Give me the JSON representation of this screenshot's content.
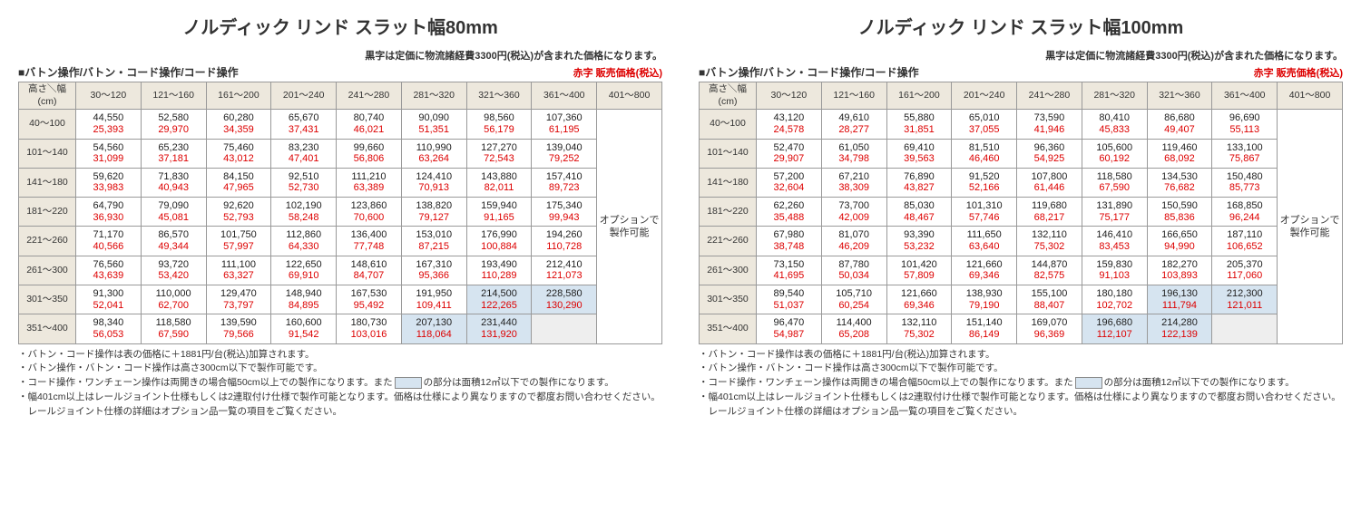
{
  "panels": [
    {
      "title": "ノルディック リンド スラット幅80mm",
      "top_note": "黒字は定価に物流諸経費3300円(税込)が含まれた価格になります。",
      "op_label": "■バトン操作/バトン・コード操作/コード操作",
      "red_label": "赤字 販売価格(税込)",
      "col_header_first": "高さ＼幅(cm)",
      "columns": [
        "30～120",
        "121～160",
        "161～200",
        "201～240",
        "241～280",
        "281～320",
        "321～360",
        "361～400",
        "401～800"
      ],
      "option_text": "オプションで製作可能",
      "rows": [
        {
          "h": "40～100",
          "v": [
            [
              "44,550",
              "25,393"
            ],
            [
              "52,580",
              "29,970"
            ],
            [
              "60,280",
              "34,359"
            ],
            [
              "65,670",
              "37,431"
            ],
            [
              "80,740",
              "46,021"
            ],
            [
              "90,090",
              "51,351"
            ],
            [
              "98,560",
              "56,179"
            ],
            [
              "107,360",
              "61,195"
            ]
          ]
        },
        {
          "h": "101～140",
          "v": [
            [
              "54,560",
              "31,099"
            ],
            [
              "65,230",
              "37,181"
            ],
            [
              "75,460",
              "43,012"
            ],
            [
              "83,230",
              "47,401"
            ],
            [
              "99,660",
              "56,806"
            ],
            [
              "110,990",
              "63,264"
            ],
            [
              "127,270",
              "72,543"
            ],
            [
              "139,040",
              "79,252"
            ]
          ]
        },
        {
          "h": "141～180",
          "v": [
            [
              "59,620",
              "33,983"
            ],
            [
              "71,830",
              "40,943"
            ],
            [
              "84,150",
              "47,965"
            ],
            [
              "92,510",
              "52,730"
            ],
            [
              "111,210",
              "63,389"
            ],
            [
              "124,410",
              "70,913"
            ],
            [
              "143,880",
              "82,011"
            ],
            [
              "157,410",
              "89,723"
            ]
          ]
        },
        {
          "h": "181～220",
          "v": [
            [
              "64,790",
              "36,930"
            ],
            [
              "79,090",
              "45,081"
            ],
            [
              "92,620",
              "52,793"
            ],
            [
              "102,190",
              "58,248"
            ],
            [
              "123,860",
              "70,600"
            ],
            [
              "138,820",
              "79,127"
            ],
            [
              "159,940",
              "91,165"
            ],
            [
              "175,340",
              "99,943"
            ]
          ]
        },
        {
          "h": "221～260",
          "v": [
            [
              "71,170",
              "40,566"
            ],
            [
              "86,570",
              "49,344"
            ],
            [
              "101,750",
              "57,997"
            ],
            [
              "112,860",
              "64,330"
            ],
            [
              "136,400",
              "77,748"
            ],
            [
              "153,010",
              "87,215"
            ],
            [
              "176,990",
              "100,884"
            ],
            [
              "194,260",
              "110,728"
            ]
          ]
        },
        {
          "h": "261～300",
          "v": [
            [
              "76,560",
              "43,639"
            ],
            [
              "93,720",
              "53,420"
            ],
            [
              "111,100",
              "63,327"
            ],
            [
              "122,650",
              "69,910"
            ],
            [
              "148,610",
              "84,707"
            ],
            [
              "167,310",
              "95,366"
            ],
            [
              "193,490",
              "110,289"
            ],
            [
              "212,410",
              "121,073"
            ]
          ]
        },
        {
          "h": "301～350",
          "v": [
            [
              "91,300",
              "52,041"
            ],
            [
              "110,000",
              "62,700"
            ],
            [
              "129,470",
              "73,797"
            ],
            [
              "148,940",
              "84,895"
            ],
            [
              "167,530",
              "95,492"
            ],
            [
              "191,950",
              "109,411"
            ],
            [
              "214,500",
              "122,265"
            ],
            [
              "228,580",
              "130,290"
            ]
          ],
          "blue": [
            6,
            7
          ]
        },
        {
          "h": "351～400",
          "v": [
            [
              "98,340",
              "56,053"
            ],
            [
              "118,580",
              "67,590"
            ],
            [
              "139,590",
              "79,566"
            ],
            [
              "160,600",
              "91,542"
            ],
            [
              "180,730",
              "103,016"
            ],
            [
              "207,130",
              "118,064"
            ],
            [
              "231,440",
              "131,920"
            ]
          ],
          "blue": [
            5,
            6
          ],
          "grey": [
            7
          ]
        }
      ],
      "notes": [
        "・バトン・コード操作は表の価格に＋1881円/台(税込)加算されます。",
        "・バトン操作・バトン・コード操作は高さ300cm以下で製作可能です。",
        {
          "parts": [
            "・コード操作・ワンチェーン操作は両開きの場合幅50cm以上での製作になります。また",
            "SWATCH",
            "の部分は面積12㎡以下での製作になります。"
          ]
        },
        "・幅401cm以上はレールジョイント仕様もしくは2連取付け仕様で製作可能となります。価格は仕様により異なりますので都度お問い合わせください。",
        "　レールジョイント仕様の詳細はオプション品一覧の項目をご覧ください。"
      ]
    },
    {
      "title": "ノルディック リンド スラット幅100mm",
      "top_note": "黒字は定価に物流諸経費3300円(税込)が含まれた価格になります。",
      "op_label": "■バトン操作/バトン・コード操作/コード操作",
      "red_label": "赤字 販売価格(税込)",
      "col_header_first": "高さ＼幅(cm)",
      "columns": [
        "30～120",
        "121～160",
        "161～200",
        "201～240",
        "241～280",
        "281～320",
        "321～360",
        "361～400",
        "401～800"
      ],
      "option_text": "オプションで製作可能",
      "rows": [
        {
          "h": "40～100",
          "v": [
            [
              "43,120",
              "24,578"
            ],
            [
              "49,610",
              "28,277"
            ],
            [
              "55,880",
              "31,851"
            ],
            [
              "65,010",
              "37,055"
            ],
            [
              "73,590",
              "41,946"
            ],
            [
              "80,410",
              "45,833"
            ],
            [
              "86,680",
              "49,407"
            ],
            [
              "96,690",
              "55,113"
            ]
          ]
        },
        {
          "h": "101～140",
          "v": [
            [
              "52,470",
              "29,907"
            ],
            [
              "61,050",
              "34,798"
            ],
            [
              "69,410",
              "39,563"
            ],
            [
              "81,510",
              "46,460"
            ],
            [
              "96,360",
              "54,925"
            ],
            [
              "105,600",
              "60,192"
            ],
            [
              "119,460",
              "68,092"
            ],
            [
              "133,100",
              "75,867"
            ]
          ]
        },
        {
          "h": "141～180",
          "v": [
            [
              "57,200",
              "32,604"
            ],
            [
              "67,210",
              "38,309"
            ],
            [
              "76,890",
              "43,827"
            ],
            [
              "91,520",
              "52,166"
            ],
            [
              "107,800",
              "61,446"
            ],
            [
              "118,580",
              "67,590"
            ],
            [
              "134,530",
              "76,682"
            ],
            [
              "150,480",
              "85,773"
            ]
          ]
        },
        {
          "h": "181～220",
          "v": [
            [
              "62,260",
              "35,488"
            ],
            [
              "73,700",
              "42,009"
            ],
            [
              "85,030",
              "48,467"
            ],
            [
              "101,310",
              "57,746"
            ],
            [
              "119,680",
              "68,217"
            ],
            [
              "131,890",
              "75,177"
            ],
            [
              "150,590",
              "85,836"
            ],
            [
              "168,850",
              "96,244"
            ]
          ]
        },
        {
          "h": "221～260",
          "v": [
            [
              "67,980",
              "38,748"
            ],
            [
              "81,070",
              "46,209"
            ],
            [
              "93,390",
              "53,232"
            ],
            [
              "111,650",
              "63,640"
            ],
            [
              "132,110",
              "75,302"
            ],
            [
              "146,410",
              "83,453"
            ],
            [
              "166,650",
              "94,990"
            ],
            [
              "187,110",
              "106,652"
            ]
          ]
        },
        {
          "h": "261～300",
          "v": [
            [
              "73,150",
              "41,695"
            ],
            [
              "87,780",
              "50,034"
            ],
            [
              "101,420",
              "57,809"
            ],
            [
              "121,660",
              "69,346"
            ],
            [
              "144,870",
              "82,575"
            ],
            [
              "159,830",
              "91,103"
            ],
            [
              "182,270",
              "103,893"
            ],
            [
              "205,370",
              "117,060"
            ]
          ]
        },
        {
          "h": "301～350",
          "v": [
            [
              "89,540",
              "51,037"
            ],
            [
              "105,710",
              "60,254"
            ],
            [
              "121,660",
              "69,346"
            ],
            [
              "138,930",
              "79,190"
            ],
            [
              "155,100",
              "88,407"
            ],
            [
              "180,180",
              "102,702"
            ],
            [
              "196,130",
              "111,794"
            ],
            [
              "212,300",
              "121,011"
            ]
          ],
          "blue": [
            6,
            7
          ]
        },
        {
          "h": "351～400",
          "v": [
            [
              "96,470",
              "54,987"
            ],
            [
              "114,400",
              "65,208"
            ],
            [
              "132,110",
              "75,302"
            ],
            [
              "151,140",
              "86,149"
            ],
            [
              "169,070",
              "96,369"
            ],
            [
              "196,680",
              "112,107"
            ],
            [
              "214,280",
              "122,139"
            ]
          ],
          "blue": [
            5,
            6
          ],
          "grey": [
            7
          ]
        }
      ],
      "notes": [
        "・バトン・コード操作は表の価格に＋1881円/台(税込)加算されます。",
        "・バトン操作・バトン・コード操作は高さ300cm以下で製作可能です。",
        {
          "parts": [
            "・コード操作・ワンチェーン操作は両開きの場合幅50cm以上での製作になります。また",
            "SWATCH",
            "の部分は面積12㎡以下での製作になります。"
          ]
        },
        "・幅401cm以上はレールジョイント仕様もしくは2連取付け仕様で製作可能となります。価格は仕様により異なりますので都度お問い合わせください。",
        "　レールジョイント仕様の詳細はオプション品一覧の項目をご覧ください。"
      ]
    }
  ]
}
